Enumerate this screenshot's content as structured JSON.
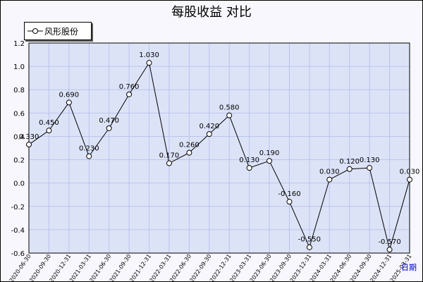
{
  "chart_data": {
    "type": "line",
    "title": "每股收益  对比",
    "legend_position": "top-left",
    "grid": true,
    "xunit": "日期",
    "ylim": [
      -0.6,
      1.2
    ],
    "yticks": [
      "1.2",
      "1.0",
      "0.8",
      "0.6",
      "0.4",
      "0.2",
      "0.0",
      "-0.2",
      "-0.4",
      "-0.6"
    ],
    "ytick_values": [
      1.2,
      1.0,
      0.8,
      0.6,
      0.4,
      0.2,
      0.0,
      -0.2,
      -0.4,
      -0.6
    ],
    "categories": [
      "2020-06-30",
      "2020-09-30",
      "2020-12-31",
      "2021-03-31",
      "2021-06-30",
      "2021-09-30",
      "2021-12-31",
      "2022-03-31",
      "2022-06-30",
      "2022-09-30",
      "2022-12-31",
      "2023-03-31",
      "2023-06-30",
      "2023-09-30",
      "2023-12-31",
      "2024-03-31",
      "2024-06-30",
      "2024-09-30",
      "2024-12-31",
      "2025-03-31"
    ],
    "series": [
      {
        "name": "风形股份",
        "color": "#000000",
        "values": [
          0.33,
          0.45,
          0.69,
          0.23,
          0.47,
          0.76,
          1.03,
          0.17,
          0.26,
          0.42,
          0.58,
          0.13,
          0.19,
          -0.16,
          -0.55,
          0.03,
          0.12,
          0.13,
          -0.57,
          0.03
        ],
        "labels": [
          "0.330",
          "0.450",
          "0.690",
          "0.230",
          "0.470",
          "0.760",
          "1.030",
          "0.170",
          "0.260",
          "0.420",
          "0.580",
          "0.130",
          "0.190",
          "-0.160",
          "-0.550",
          "0.030",
          "0.120",
          "0.130",
          "-0.570",
          "0.030"
        ]
      }
    ]
  },
  "colors": {
    "plot_background": "#dde3f7",
    "grid": "#b8c4ea",
    "line": "#000000"
  }
}
